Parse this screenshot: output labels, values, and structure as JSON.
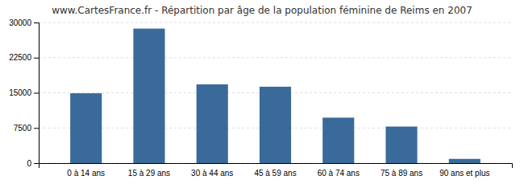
{
  "chart_data": {
    "type": "bar",
    "title": "www.CartesFrance.fr - Répartition par âge de la population féminine de Reims en 2007",
    "categories": [
      "0 à 14 ans",
      "15 à 29 ans",
      "30 à 44 ans",
      "45 à 59 ans",
      "60 à 74 ans",
      "75 à 89 ans",
      "90 ans et plus"
    ],
    "values": [
      14900,
      28700,
      16800,
      16300,
      9700,
      7800,
      900
    ],
    "color": "#3a6a99",
    "ylim": [
      0,
      30000
    ],
    "yticks": [
      0,
      7500,
      15000,
      22500,
      30000
    ],
    "grid": true
  }
}
